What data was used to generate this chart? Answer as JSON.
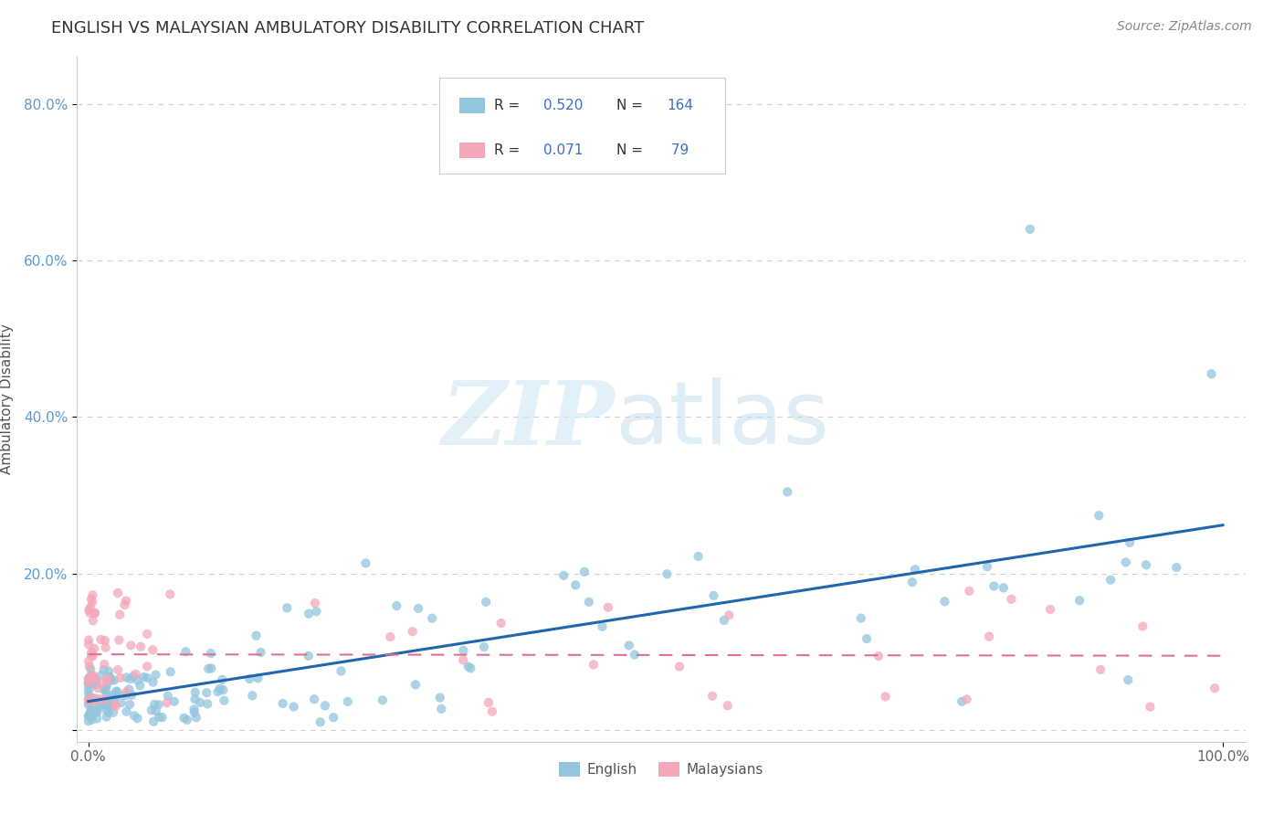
{
  "title": "ENGLISH VS MALAYSIAN AMBULATORY DISABILITY CORRELATION CHART",
  "source": "Source: ZipAtlas.com",
  "ylabel": "Ambulatory Disability",
  "english_R": 0.52,
  "english_N": 164,
  "malaysian_R": 0.071,
  "malaysian_N": 79,
  "english_color": "#92c5de",
  "malaysian_color": "#f4a7b9",
  "english_line_color": "#2166ac",
  "malaysian_line_color": "#e07090",
  "background_color": "#ffffff",
  "xlim": [
    -0.01,
    1.02
  ],
  "ylim": [
    -0.015,
    0.86
  ],
  "yticks": [
    0.0,
    0.2,
    0.4,
    0.6,
    0.8
  ],
  "ytick_labels": [
    "",
    "20.0%",
    "40.0%",
    "60.0%",
    "80.0%"
  ],
  "xtick_labels": [
    "0.0%",
    "100.0%"
  ],
  "legend_bottom": [
    "English",
    "Malaysians"
  ],
  "title_fontsize": 13,
  "source_fontsize": 10,
  "axis_label_fontsize": 11,
  "tick_fontsize": 11
}
